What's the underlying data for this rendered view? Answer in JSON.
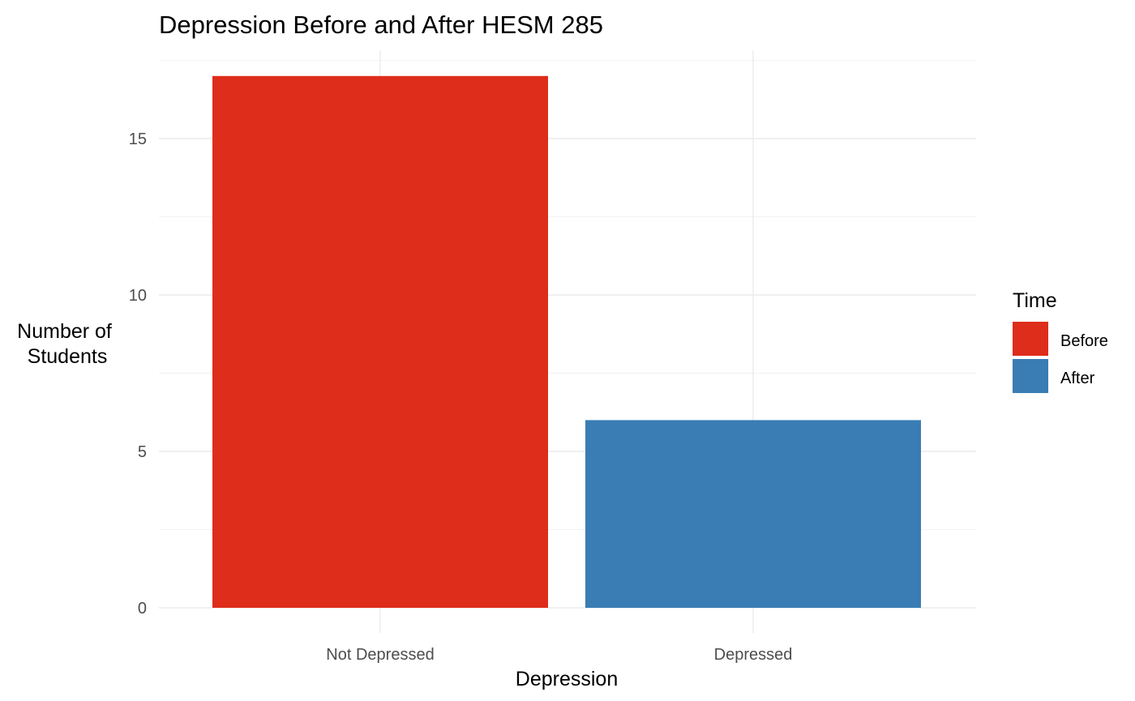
{
  "chart_data": {
    "type": "bar",
    "title": "Depression Before and After HESM 285",
    "xlabel": "Depression",
    "ylabel": [
      "Number of",
      "Students"
    ],
    "categories": [
      "Not Depressed",
      "Depressed"
    ],
    "values": [
      17,
      6
    ],
    "bar_series": [
      "Before",
      "After"
    ],
    "ylim": [
      0,
      17.85
    ],
    "yticks": [
      0,
      5,
      10,
      15
    ],
    "grid": true,
    "legend": {
      "title": "Time",
      "position": "right",
      "entries": [
        {
          "label": "Before",
          "color": "#de2d1a"
        },
        {
          "label": "After",
          "color": "#397db4"
        }
      ]
    }
  }
}
